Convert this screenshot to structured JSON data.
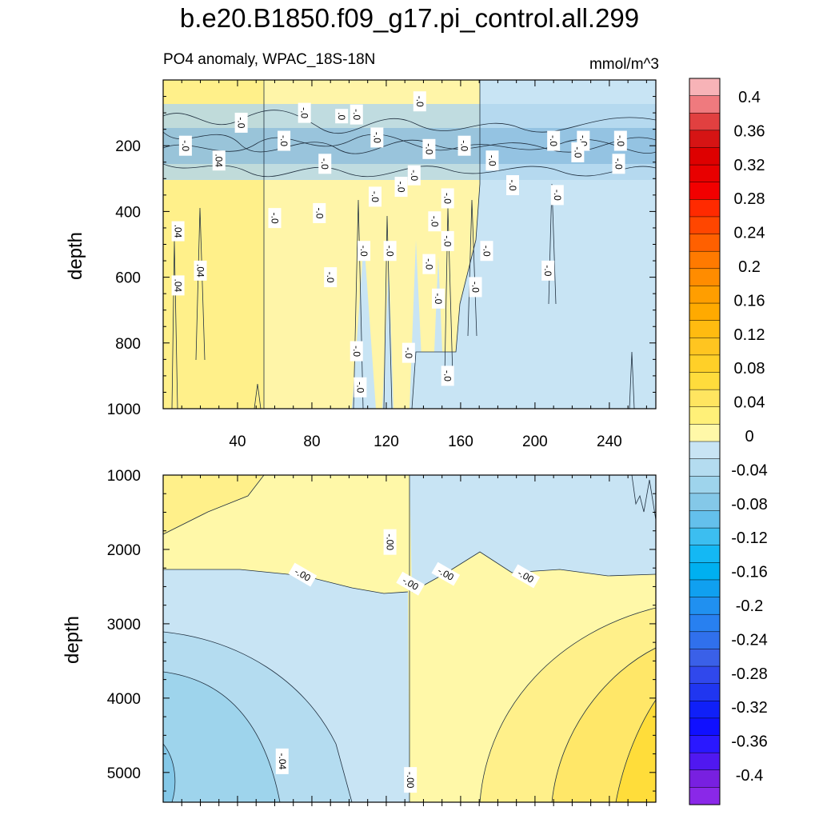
{
  "title": "b.e20.B1850.f09_g17.pi_control.all.299",
  "subtitle": "PO4 anomaly, WPAC_18S-18N",
  "units": "mmol/m^3",
  "chart_data": [
    {
      "type": "heatmap",
      "panel": "upper",
      "ylabel": "depth",
      "xlabel": "",
      "xlim": [
        0,
        265
      ],
      "ylim": [
        1000,
        0
      ],
      "x_ticks": [
        "40",
        "80",
        "120",
        "160",
        "200",
        "240"
      ],
      "y_ticks": [
        "200",
        "400",
        "600",
        "800",
        "1000"
      ],
      "columns": [
        {
          "x0": 0,
          "x1": 55,
          "value": 0.03
        },
        {
          "x0": 55,
          "x1": 133,
          "value": 0.01
        },
        {
          "x0": 133,
          "x1": 265,
          "value": -0.02
        }
      ],
      "contour_labels": [
        {
          "text": "-.0",
          "x": 138,
          "y": 65
        },
        {
          "text": "-.0",
          "x": 76,
          "y": 100
        },
        {
          "text": "-.0",
          "x": 42,
          "y": 130
        },
        {
          "text": ".0",
          "x": 96,
          "y": 110
        },
        {
          "text": "-.0",
          "x": 104,
          "y": 105
        },
        {
          "text": "-.0",
          "x": 143,
          "y": 210
        },
        {
          "text": "-.0",
          "x": 115,
          "y": 175
        },
        {
          "text": "-.0",
          "x": 65,
          "y": 185
        },
        {
          "text": "-.0",
          "x": 12,
          "y": 200
        },
        {
          "text": ".04",
          "x": 30,
          "y": 245
        },
        {
          "text": "-.0",
          "x": 87,
          "y": 255
        },
        {
          "text": "-.0",
          "x": 135,
          "y": 290
        },
        {
          "text": "-.0",
          "x": 177,
          "y": 245
        },
        {
          "text": "-.0",
          "x": 162,
          "y": 200
        },
        {
          "text": "-.0",
          "x": 128,
          "y": 325
        },
        {
          "text": "-.0",
          "x": 114,
          "y": 355
        },
        {
          "text": "-.0",
          "x": 153,
          "y": 360
        },
        {
          "text": "-.0",
          "x": 210,
          "y": 185
        },
        {
          "text": "-.0",
          "x": 226,
          "y": 185
        },
        {
          "text": "-.0",
          "x": 246,
          "y": 185
        },
        {
          "text": "-.0",
          "x": 245,
          "y": 255
        },
        {
          "text": "-.0",
          "x": 188,
          "y": 320
        },
        {
          "text": "-.0",
          "x": 212,
          "y": 350
        },
        {
          "text": "-.0",
          "x": 223,
          "y": 220
        },
        {
          "text": "-.0",
          "x": 84,
          "y": 405
        },
        {
          "text": "-.0",
          "x": 60,
          "y": 420
        },
        {
          "text": ".04",
          "x": 8,
          "y": 460
        },
        {
          "text": "-.0",
          "x": 146,
          "y": 430
        },
        {
          "text": "-.0",
          "x": 153,
          "y": 490
        },
        {
          "text": "-.0",
          "x": 108,
          "y": 520
        },
        {
          "text": "-.0",
          "x": 122,
          "y": 520
        },
        {
          "text": "-.0",
          "x": 174,
          "y": 520
        },
        {
          "text": "-.0",
          "x": 143,
          "y": 560
        },
        {
          "text": ".04",
          "x": 20,
          "y": 580
        },
        {
          "text": "-.0",
          "x": 207,
          "y": 580
        },
        {
          "text": "-.0",
          "x": 90,
          "y": 600
        },
        {
          "text": ".04",
          "x": 8,
          "y": 625
        },
        {
          "text": "-.0",
          "x": 168,
          "y": 630
        },
        {
          "text": "-.0",
          "x": 148,
          "y": 665
        },
        {
          "text": "-.0",
          "x": 104,
          "y": 825
        },
        {
          "text": "-.0",
          "x": 132,
          "y": 830
        },
        {
          "text": "-.0",
          "x": 153,
          "y": 900
        },
        {
          "text": "-.0",
          "x": 106,
          "y": 935
        }
      ]
    },
    {
      "type": "heatmap",
      "panel": "lower",
      "ylabel": "depth",
      "xlabel": "",
      "xlim": [
        0,
        265
      ],
      "ylim": [
        5400,
        1000
      ],
      "x_ticks": [],
      "y_ticks": [
        "1000",
        "2000",
        "3000",
        "4000",
        "5000"
      ],
      "contour_levels": [
        -0.04,
        -0.02,
        0.0,
        0.02,
        0.04,
        0.06
      ],
      "contour_labels": [
        {
          "text": "-.00",
          "x": 122,
          "y": 1900
        },
        {
          "text": "-.00",
          "x": 75,
          "y": 2340
        },
        {
          "text": "-.00",
          "x": 133,
          "y": 2460
        },
        {
          "text": "-.00",
          "x": 152,
          "y": 2330
        },
        {
          "text": "-.00",
          "x": 195,
          "y": 2360
        },
        {
          "text": "-.04",
          "x": 64,
          "y": 4850
        },
        {
          "text": "-.00",
          "x": 133,
          "y": 5100
        }
      ]
    }
  ],
  "colorbar": {
    "levels": [
      "0.4",
      "0.36",
      "0.32",
      "0.28",
      "0.24",
      "0.2",
      "0.16",
      "0.12",
      "0.08",
      "0.04",
      "0",
      "-0.04",
      "-0.08",
      "-0.12",
      "-0.16",
      "-0.2",
      "-0.24",
      "-0.28",
      "-0.32",
      "-0.36",
      "-0.4"
    ],
    "colors": [
      "#f7b3b7",
      "#ef7a7e",
      "#e14040",
      "#d61414",
      "#de0000",
      "#e80000",
      "#f20000",
      "#ff2a00",
      "#ff4600",
      "#ff6000",
      "#ff7a00",
      "#ff8c00",
      "#ff9e00",
      "#ffaa00",
      "#ffbb10",
      "#ffc520",
      "#ffd028",
      "#ffdc3c",
      "#ffe560",
      "#fff078",
      "#fff8a8",
      "#c8e4f4",
      "#b4dcf0",
      "#9ed4ec",
      "#84c8e8",
      "#64c0ec",
      "#3cbef0",
      "#14b8f4",
      "#00b0f0",
      "#10a0f0",
      "#2090f0",
      "#2880f0",
      "#3070ec",
      "#3a60e8",
      "#3048ec",
      "#2036f0",
      "#1020f8",
      "#1010ff",
      "#2a18ff",
      "#5018f0",
      "#7820e0",
      "#8a28e8"
    ]
  }
}
